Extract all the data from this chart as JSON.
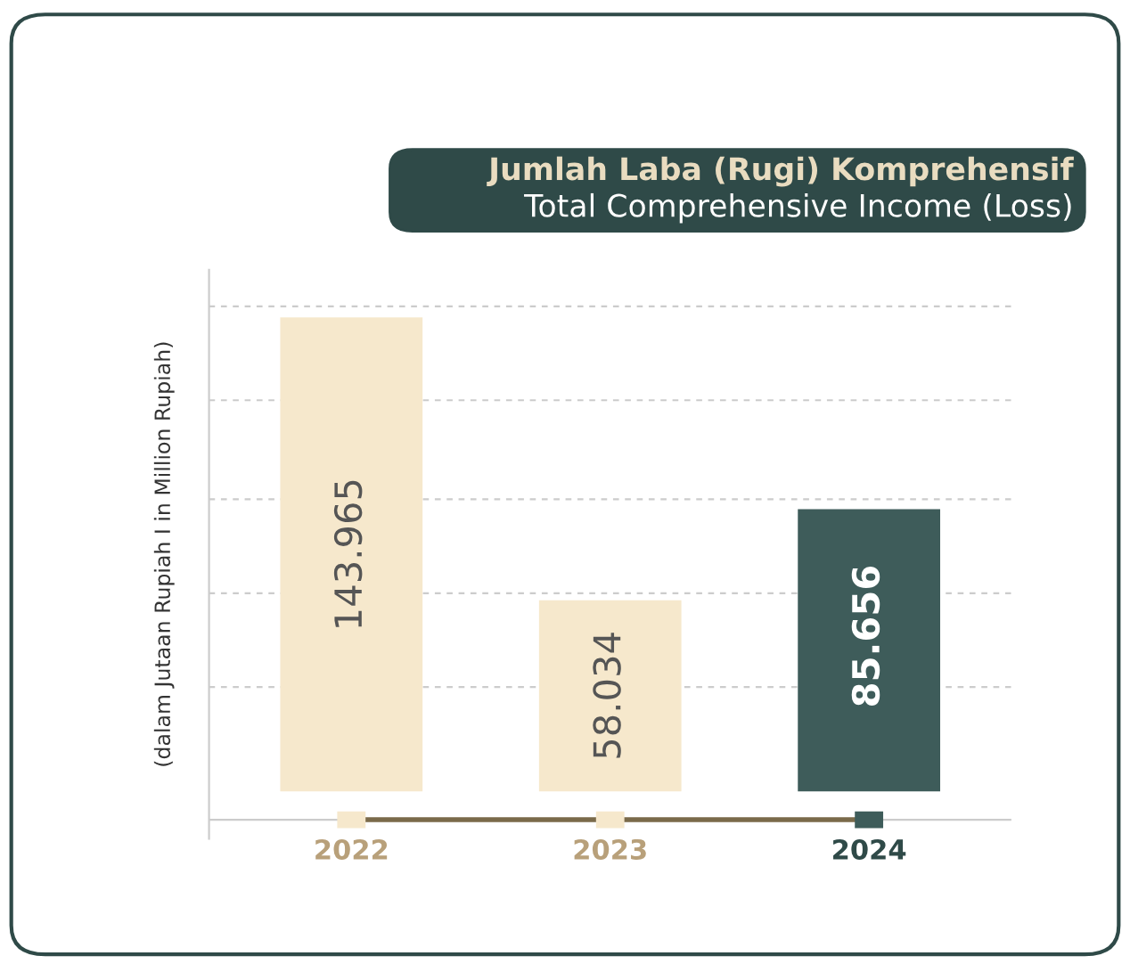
{
  "chart_data": {
    "type": "bar",
    "title": "Jumlah Laba (Rugi) Komprehensif",
    "subtitle": "Total Comprehensive Income (Loss)",
    "ylabel": "(dalam Jutaan Rupiah I in Million Rupiah)",
    "categories": [
      "2022",
      "2023",
      "2024"
    ],
    "values": [
      143.965,
      58.034,
      85.656
    ],
    "colors": [
      "#f6e8cc",
      "#f6e8cc",
      "#3e5c5a"
    ],
    "data_labels": true,
    "grid": "y"
  }
}
